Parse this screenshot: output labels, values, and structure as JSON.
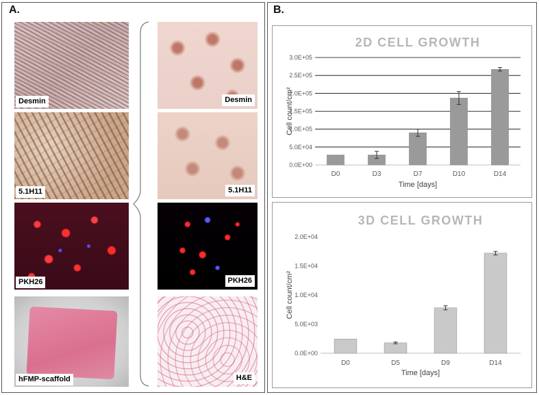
{
  "panel_a": {
    "label": "A.",
    "left_images": [
      {
        "label": "Desmin"
      },
      {
        "label": "5.1H11"
      },
      {
        "label": "PKH26"
      },
      {
        "label": "hFMP-scaffold"
      }
    ],
    "right_images": [
      {
        "label": "Desmin"
      },
      {
        "label": "5.1H11"
      },
      {
        "label": "PKH26"
      },
      {
        "label": "H&E"
      }
    ]
  },
  "panel_b": {
    "label": "B."
  },
  "colors": {
    "title": "#b7b7b7",
    "bar_2d": "#9a9a9a",
    "bar_3d": "#c9c9c9",
    "axis_text": "#595959",
    "grid": "#000000"
  },
  "chart_data": [
    {
      "type": "bar",
      "title": "2D CELL GROWTH",
      "categories": [
        "D0",
        "D3",
        "D7",
        "D10",
        "D14"
      ],
      "values": [
        28000,
        28000,
        90000,
        187000,
        267000
      ],
      "errors": [
        0,
        10000,
        10000,
        18000,
        5000
      ],
      "xlabel": "Time [days]",
      "ylabel": "Cell count/cm²",
      "ylim": [
        0,
        300000
      ],
      "yticks": [
        0,
        50000,
        100000,
        150000,
        200000,
        250000,
        300000
      ],
      "ytick_labels": [
        "0.0E+00",
        "5.0E+04",
        "1.0E+05",
        "1.5E+05",
        "2.0E+05",
        "2.5E+05",
        "3.0E+05"
      ],
      "grid": true
    },
    {
      "type": "bar",
      "title": "3D CELL GROWTH",
      "categories": [
        "D0",
        "D5",
        "D9",
        "D14"
      ],
      "values": [
        2450,
        1780,
        7800,
        17200
      ],
      "errors": [
        0,
        150,
        350,
        300
      ],
      "xlabel": "Time [days]",
      "ylabel": "Cell count/cm²",
      "ylim": [
        0,
        20000
      ],
      "yticks": [
        0,
        5000,
        10000,
        15000,
        20000
      ],
      "ytick_labels": [
        "0.0E+00",
        "5.0E+03",
        "1.0E+04",
        "1.5E+04",
        "2.0E+04"
      ],
      "grid": false
    }
  ]
}
